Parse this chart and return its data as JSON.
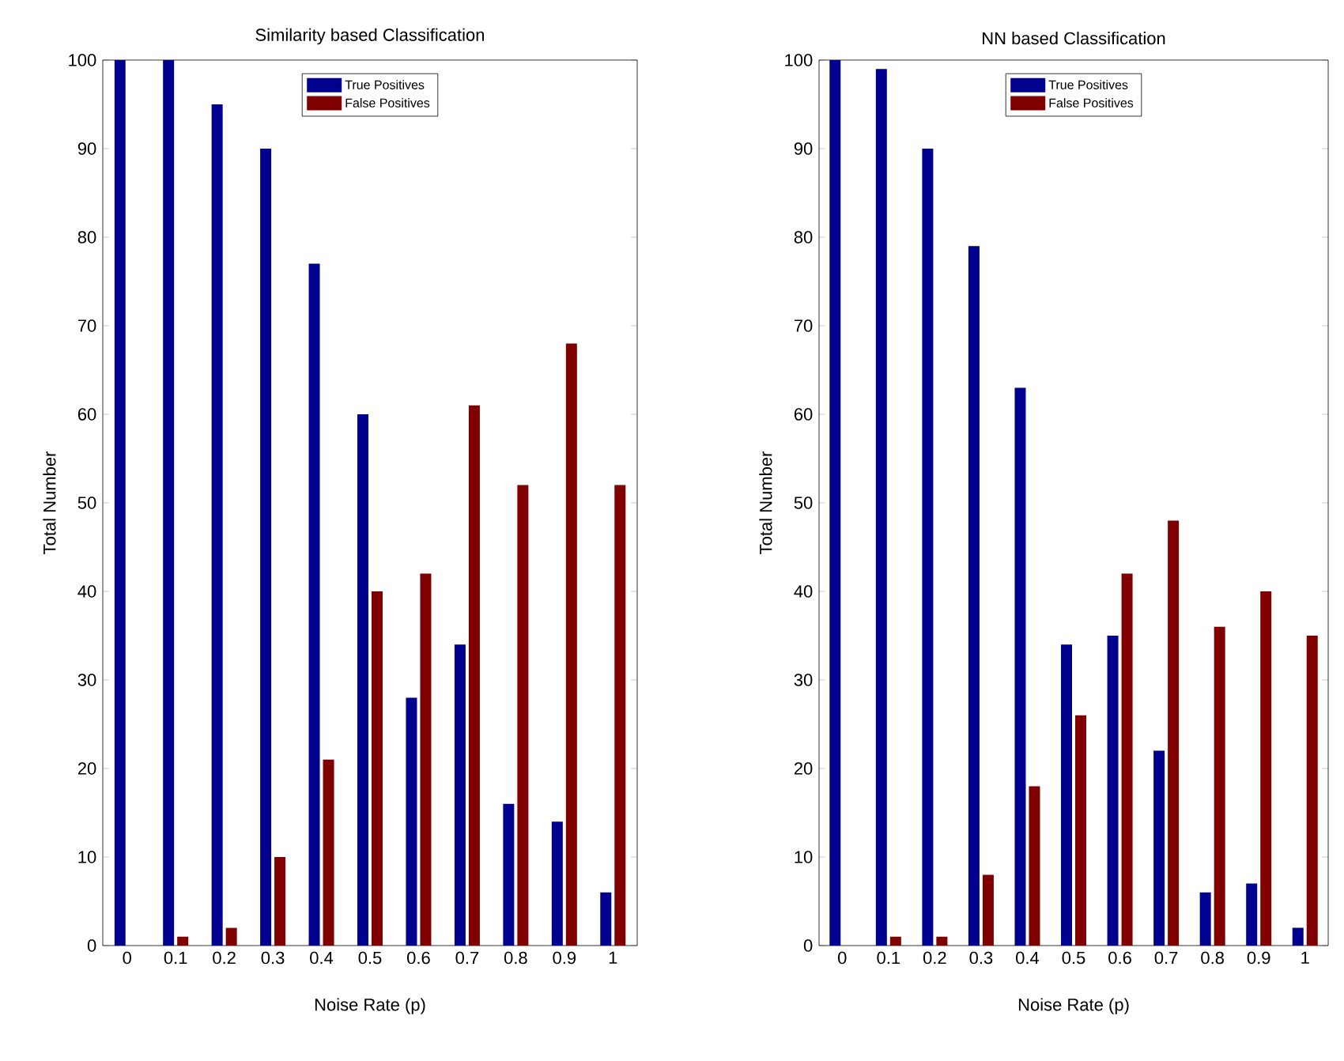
{
  "chart_data": [
    {
      "type": "bar",
      "title": "Similarity based Classification",
      "xlabel": "Noise Rate (p)",
      "ylabel": "Total Number",
      "categories": [
        "0",
        "0.1",
        "0.2",
        "0.3",
        "0.4",
        "0.5",
        "0.6",
        "0.7",
        "0.8",
        "0.9",
        "1"
      ],
      "series": [
        {
          "name": "True Positives",
          "color": "#00008f",
          "values": [
            100,
            100,
            95,
            90,
            77,
            60,
            28,
            34,
            16,
            14,
            6
          ]
        },
        {
          "name": "False Positives",
          "color": "#800000",
          "values": [
            0,
            1,
            2,
            10,
            21,
            40,
            42,
            61,
            52,
            68,
            52
          ]
        }
      ],
      "ylim": [
        0,
        100
      ],
      "yticks": [
        0,
        10,
        20,
        30,
        40,
        50,
        60,
        70,
        80,
        90,
        100
      ],
      "legend": "top"
    },
    {
      "type": "bar",
      "title": "NN based Classification",
      "xlabel": "Noise Rate (p)",
      "ylabel": "Total Number",
      "categories": [
        "0",
        "0.1",
        "0.2",
        "0.3",
        "0.4",
        "0.5",
        "0.6",
        "0.7",
        "0.8",
        "0.9",
        "1"
      ],
      "series": [
        {
          "name": "True Positives",
          "color": "#00008f",
          "values": [
            100,
            99,
            90,
            79,
            63,
            34,
            35,
            22,
            6,
            7,
            2
          ]
        },
        {
          "name": "False Positives",
          "color": "#800000",
          "values": [
            0,
            1,
            1,
            8,
            18,
            26,
            42,
            48,
            36,
            40,
            35
          ]
        }
      ],
      "ylim": [
        0,
        100
      ],
      "yticks": [
        0,
        10,
        20,
        30,
        40,
        50,
        60,
        70,
        80,
        90,
        100
      ],
      "legend": "top"
    }
  ]
}
